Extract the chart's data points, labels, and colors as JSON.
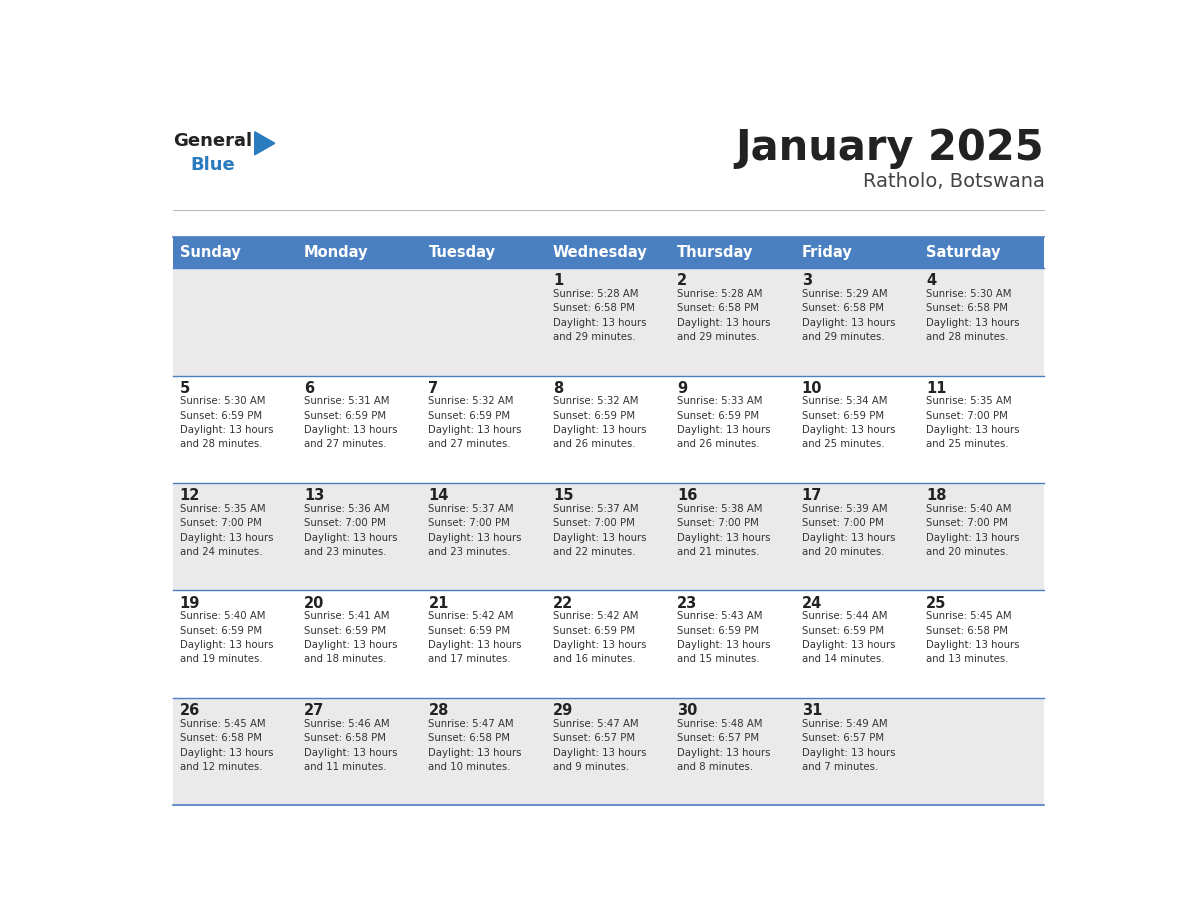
{
  "title": "January 2025",
  "subtitle": "Ratholo, Botswana",
  "header_bg": "#4a7fc1",
  "header_text_color": "#FFFFFF",
  "days_of_week": [
    "Sunday",
    "Monday",
    "Tuesday",
    "Wednesday",
    "Thursday",
    "Friday",
    "Saturday"
  ],
  "row_bg_light": "#EAEAEA",
  "row_bg_white": "#FFFFFF",
  "cell_border_color": "#4a7fc1",
  "day_number_color": "#222222",
  "info_text_color": "#333333",
  "title_color": "#222222",
  "subtitle_color": "#444444",
  "logo_general_color": "#222222",
  "logo_blue_color": "#2B7BBF",
  "calendar": [
    [
      {
        "day": "",
        "info": ""
      },
      {
        "day": "",
        "info": ""
      },
      {
        "day": "",
        "info": ""
      },
      {
        "day": "1",
        "info": "Sunrise: 5:28 AM\nSunset: 6:58 PM\nDaylight: 13 hours\nand 29 minutes."
      },
      {
        "day": "2",
        "info": "Sunrise: 5:28 AM\nSunset: 6:58 PM\nDaylight: 13 hours\nand 29 minutes."
      },
      {
        "day": "3",
        "info": "Sunrise: 5:29 AM\nSunset: 6:58 PM\nDaylight: 13 hours\nand 29 minutes."
      },
      {
        "day": "4",
        "info": "Sunrise: 5:30 AM\nSunset: 6:58 PM\nDaylight: 13 hours\nand 28 minutes."
      }
    ],
    [
      {
        "day": "5",
        "info": "Sunrise: 5:30 AM\nSunset: 6:59 PM\nDaylight: 13 hours\nand 28 minutes."
      },
      {
        "day": "6",
        "info": "Sunrise: 5:31 AM\nSunset: 6:59 PM\nDaylight: 13 hours\nand 27 minutes."
      },
      {
        "day": "7",
        "info": "Sunrise: 5:32 AM\nSunset: 6:59 PM\nDaylight: 13 hours\nand 27 minutes."
      },
      {
        "day": "8",
        "info": "Sunrise: 5:32 AM\nSunset: 6:59 PM\nDaylight: 13 hours\nand 26 minutes."
      },
      {
        "day": "9",
        "info": "Sunrise: 5:33 AM\nSunset: 6:59 PM\nDaylight: 13 hours\nand 26 minutes."
      },
      {
        "day": "10",
        "info": "Sunrise: 5:34 AM\nSunset: 6:59 PM\nDaylight: 13 hours\nand 25 minutes."
      },
      {
        "day": "11",
        "info": "Sunrise: 5:35 AM\nSunset: 7:00 PM\nDaylight: 13 hours\nand 25 minutes."
      }
    ],
    [
      {
        "day": "12",
        "info": "Sunrise: 5:35 AM\nSunset: 7:00 PM\nDaylight: 13 hours\nand 24 minutes."
      },
      {
        "day": "13",
        "info": "Sunrise: 5:36 AM\nSunset: 7:00 PM\nDaylight: 13 hours\nand 23 minutes."
      },
      {
        "day": "14",
        "info": "Sunrise: 5:37 AM\nSunset: 7:00 PM\nDaylight: 13 hours\nand 23 minutes."
      },
      {
        "day": "15",
        "info": "Sunrise: 5:37 AM\nSunset: 7:00 PM\nDaylight: 13 hours\nand 22 minutes."
      },
      {
        "day": "16",
        "info": "Sunrise: 5:38 AM\nSunset: 7:00 PM\nDaylight: 13 hours\nand 21 minutes."
      },
      {
        "day": "17",
        "info": "Sunrise: 5:39 AM\nSunset: 7:00 PM\nDaylight: 13 hours\nand 20 minutes."
      },
      {
        "day": "18",
        "info": "Sunrise: 5:40 AM\nSunset: 7:00 PM\nDaylight: 13 hours\nand 20 minutes."
      }
    ],
    [
      {
        "day": "19",
        "info": "Sunrise: 5:40 AM\nSunset: 6:59 PM\nDaylight: 13 hours\nand 19 minutes."
      },
      {
        "day": "20",
        "info": "Sunrise: 5:41 AM\nSunset: 6:59 PM\nDaylight: 13 hours\nand 18 minutes."
      },
      {
        "day": "21",
        "info": "Sunrise: 5:42 AM\nSunset: 6:59 PM\nDaylight: 13 hours\nand 17 minutes."
      },
      {
        "day": "22",
        "info": "Sunrise: 5:42 AM\nSunset: 6:59 PM\nDaylight: 13 hours\nand 16 minutes."
      },
      {
        "day": "23",
        "info": "Sunrise: 5:43 AM\nSunset: 6:59 PM\nDaylight: 13 hours\nand 15 minutes."
      },
      {
        "day": "24",
        "info": "Sunrise: 5:44 AM\nSunset: 6:59 PM\nDaylight: 13 hours\nand 14 minutes."
      },
      {
        "day": "25",
        "info": "Sunrise: 5:45 AM\nSunset: 6:58 PM\nDaylight: 13 hours\nand 13 minutes."
      }
    ],
    [
      {
        "day": "26",
        "info": "Sunrise: 5:45 AM\nSunset: 6:58 PM\nDaylight: 13 hours\nand 12 minutes."
      },
      {
        "day": "27",
        "info": "Sunrise: 5:46 AM\nSunset: 6:58 PM\nDaylight: 13 hours\nand 11 minutes."
      },
      {
        "day": "28",
        "info": "Sunrise: 5:47 AM\nSunset: 6:58 PM\nDaylight: 13 hours\nand 10 minutes."
      },
      {
        "day": "29",
        "info": "Sunrise: 5:47 AM\nSunset: 6:57 PM\nDaylight: 13 hours\nand 9 minutes."
      },
      {
        "day": "30",
        "info": "Sunrise: 5:48 AM\nSunset: 6:57 PM\nDaylight: 13 hours\nand 8 minutes."
      },
      {
        "day": "31",
        "info": "Sunrise: 5:49 AM\nSunset: 6:57 PM\nDaylight: 13 hours\nand 7 minutes."
      },
      {
        "day": "",
        "info": ""
      }
    ]
  ]
}
